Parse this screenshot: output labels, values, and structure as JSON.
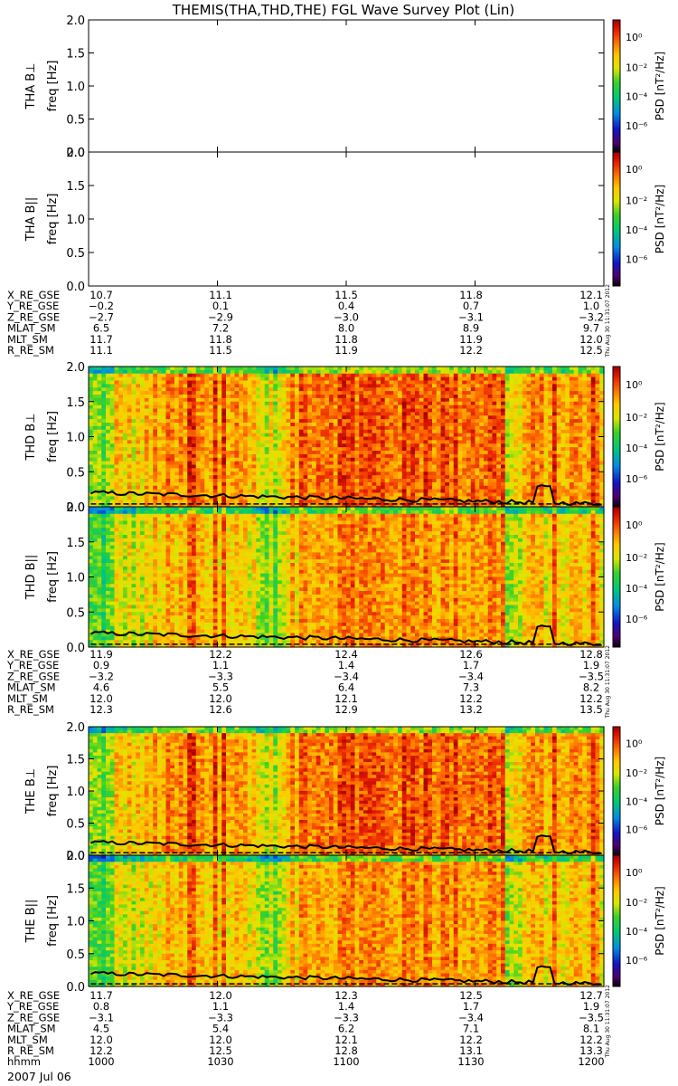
{
  "title": "THEMIS(THA,THD,THE) FGL Wave Survey Plot (Lin)",
  "colorbar": {
    "label": "PSD [nT²/Hz]",
    "ticks": [
      "10⁰",
      "10⁻²",
      "10⁻⁴",
      "10⁻⁶"
    ],
    "scale": "log"
  },
  "stamp": "Thu Aug 30 11:31:07 2012",
  "colors": {
    "background": "#ffffff",
    "frame": "#000000",
    "trace": "#000000"
  },
  "panels": [
    {
      "probe": "THA",
      "component": "B⊥",
      "ylabel": "freq [Hz]",
      "yticks": [
        "2.0",
        "1.5",
        "1.0",
        "0.5",
        "0.0"
      ],
      "has_data": false
    },
    {
      "probe": "THA",
      "component": "B||",
      "ylabel": "freq [Hz]",
      "yticks": [
        "2.0",
        "1.5",
        "1.0",
        "0.5",
        "0.0"
      ],
      "has_data": false
    },
    {
      "probe": "THD",
      "component": "B⊥",
      "ylabel": "freq [Hz]",
      "yticks": [
        "2.0",
        "1.5",
        "1.0",
        "0.5",
        "0.0"
      ],
      "has_data": true
    },
    {
      "probe": "THD",
      "component": "B||",
      "ylabel": "freq [Hz]",
      "yticks": [
        "2.0",
        "1.5",
        "1.0",
        "0.5",
        "0.0"
      ],
      "has_data": true
    },
    {
      "probe": "THE",
      "component": "B⊥",
      "ylabel": "freq [Hz]",
      "yticks": [
        "2.0",
        "1.5",
        "1.0",
        "0.5",
        "0.0"
      ],
      "has_data": true
    },
    {
      "probe": "THE",
      "component": "B||",
      "ylabel": "freq [Hz]",
      "yticks": [
        "2.0",
        "1.5",
        "1.0",
        "0.5",
        "0.0"
      ],
      "has_data": true
    }
  ],
  "ephemeris_tables": [
    {
      "probe": "THA",
      "rows": [
        {
          "label": "X_RE_GSE",
          "values": [
            "10.7",
            "11.1",
            "11.5",
            "11.8",
            "12.1"
          ]
        },
        {
          "label": "Y_RE_GSE",
          "values": [
            "−0.2",
            "0.1",
            "0.4",
            "0.7",
            "1.0"
          ]
        },
        {
          "label": "Z_RE_GSE",
          "values": [
            "−2.7",
            "−2.9",
            "−3.0",
            "−3.1",
            "−3.2"
          ]
        },
        {
          "label": "MLAT_SM",
          "values": [
            "6.5",
            "7.2",
            "8.0",
            "8.9",
            "9.7"
          ]
        },
        {
          "label": "MLT_SM",
          "values": [
            "11.7",
            "11.8",
            "11.8",
            "11.9",
            "12.0"
          ]
        },
        {
          "label": "R_RE_SM",
          "values": [
            "11.1",
            "11.5",
            "11.9",
            "12.2",
            "12.5"
          ]
        }
      ]
    },
    {
      "probe": "THD",
      "rows": [
        {
          "label": "X_RE_GSE",
          "values": [
            "11.9",
            "12.2",
            "12.4",
            "12.6",
            "12.8"
          ]
        },
        {
          "label": "Y_RE_GSE",
          "values": [
            "0.9",
            "1.1",
            "1.4",
            "1.7",
            "1.9"
          ]
        },
        {
          "label": "Z_RE_GSE",
          "values": [
            "−3.2",
            "−3.3",
            "−3.4",
            "−3.4",
            "−3.5"
          ]
        },
        {
          "label": "MLAT_SM",
          "values": [
            "4.6",
            "5.5",
            "6.4",
            "7.3",
            "8.2"
          ]
        },
        {
          "label": "MLT_SM",
          "values": [
            "12.0",
            "12.0",
            "12.1",
            "12.2",
            "12.2"
          ]
        },
        {
          "label": "R_RE_SM",
          "values": [
            "12.3",
            "12.6",
            "12.9",
            "13.2",
            "13.5"
          ]
        }
      ]
    },
    {
      "probe": "THE",
      "rows": [
        {
          "label": "X_RE_GSE",
          "values": [
            "11.7",
            "12.0",
            "12.3",
            "12.5",
            "12.7"
          ]
        },
        {
          "label": "Y_RE_GSE",
          "values": [
            "0.8",
            "1.1",
            "1.4",
            "1.7",
            "1.9"
          ]
        },
        {
          "label": "Z_RE_GSE",
          "values": [
            "−3.1",
            "−3.3",
            "−3.3",
            "−3.4",
            "−3.5"
          ]
        },
        {
          "label": "MLAT_SM",
          "values": [
            "4.5",
            "5.4",
            "6.2",
            "7.1",
            "8.1"
          ]
        },
        {
          "label": "MLT_SM",
          "values": [
            "12.0",
            "12.0",
            "12.1",
            "12.2",
            "12.2"
          ]
        },
        {
          "label": "R_RE_SM",
          "values": [
            "12.2",
            "12.5",
            "12.8",
            "13.1",
            "13.3"
          ]
        },
        {
          "label": "hhmm",
          "values": [
            "1000",
            "1030",
            "1100",
            "1130",
            "1200"
          ]
        }
      ]
    }
  ],
  "date": "2007 Jul 06",
  "chart_data": {
    "type": "heatmap",
    "title": "THEMIS(THA,THD,THE) FGL Wave Survey Plot (Lin)",
    "xlabel": "hhmm",
    "x_ticks": [
      "1000",
      "1030",
      "1100",
      "1130",
      "1200"
    ],
    "ylabel": "freq [Hz]",
    "ylim": [
      0,
      2.0
    ],
    "colorbar": {
      "label": "PSD [nT²/Hz]",
      "range_log10": [
        -7,
        1.5
      ]
    },
    "grid": false,
    "series": [
      {
        "name": "THA B⊥",
        "data": "empty"
      },
      {
        "name": "THA B||",
        "data": "empty"
      },
      {
        "name": "THD B⊥",
        "dominant_log10_psd": [
          -1,
          1
        ]
      },
      {
        "name": "THD B||",
        "dominant_log10_psd": [
          -1.5,
          0.5
        ]
      },
      {
        "name": "THE B⊥",
        "dominant_log10_psd": [
          -1,
          1
        ]
      },
      {
        "name": "THE B||",
        "dominant_log10_psd": [
          -1.5,
          0.5
        ]
      }
    ]
  }
}
